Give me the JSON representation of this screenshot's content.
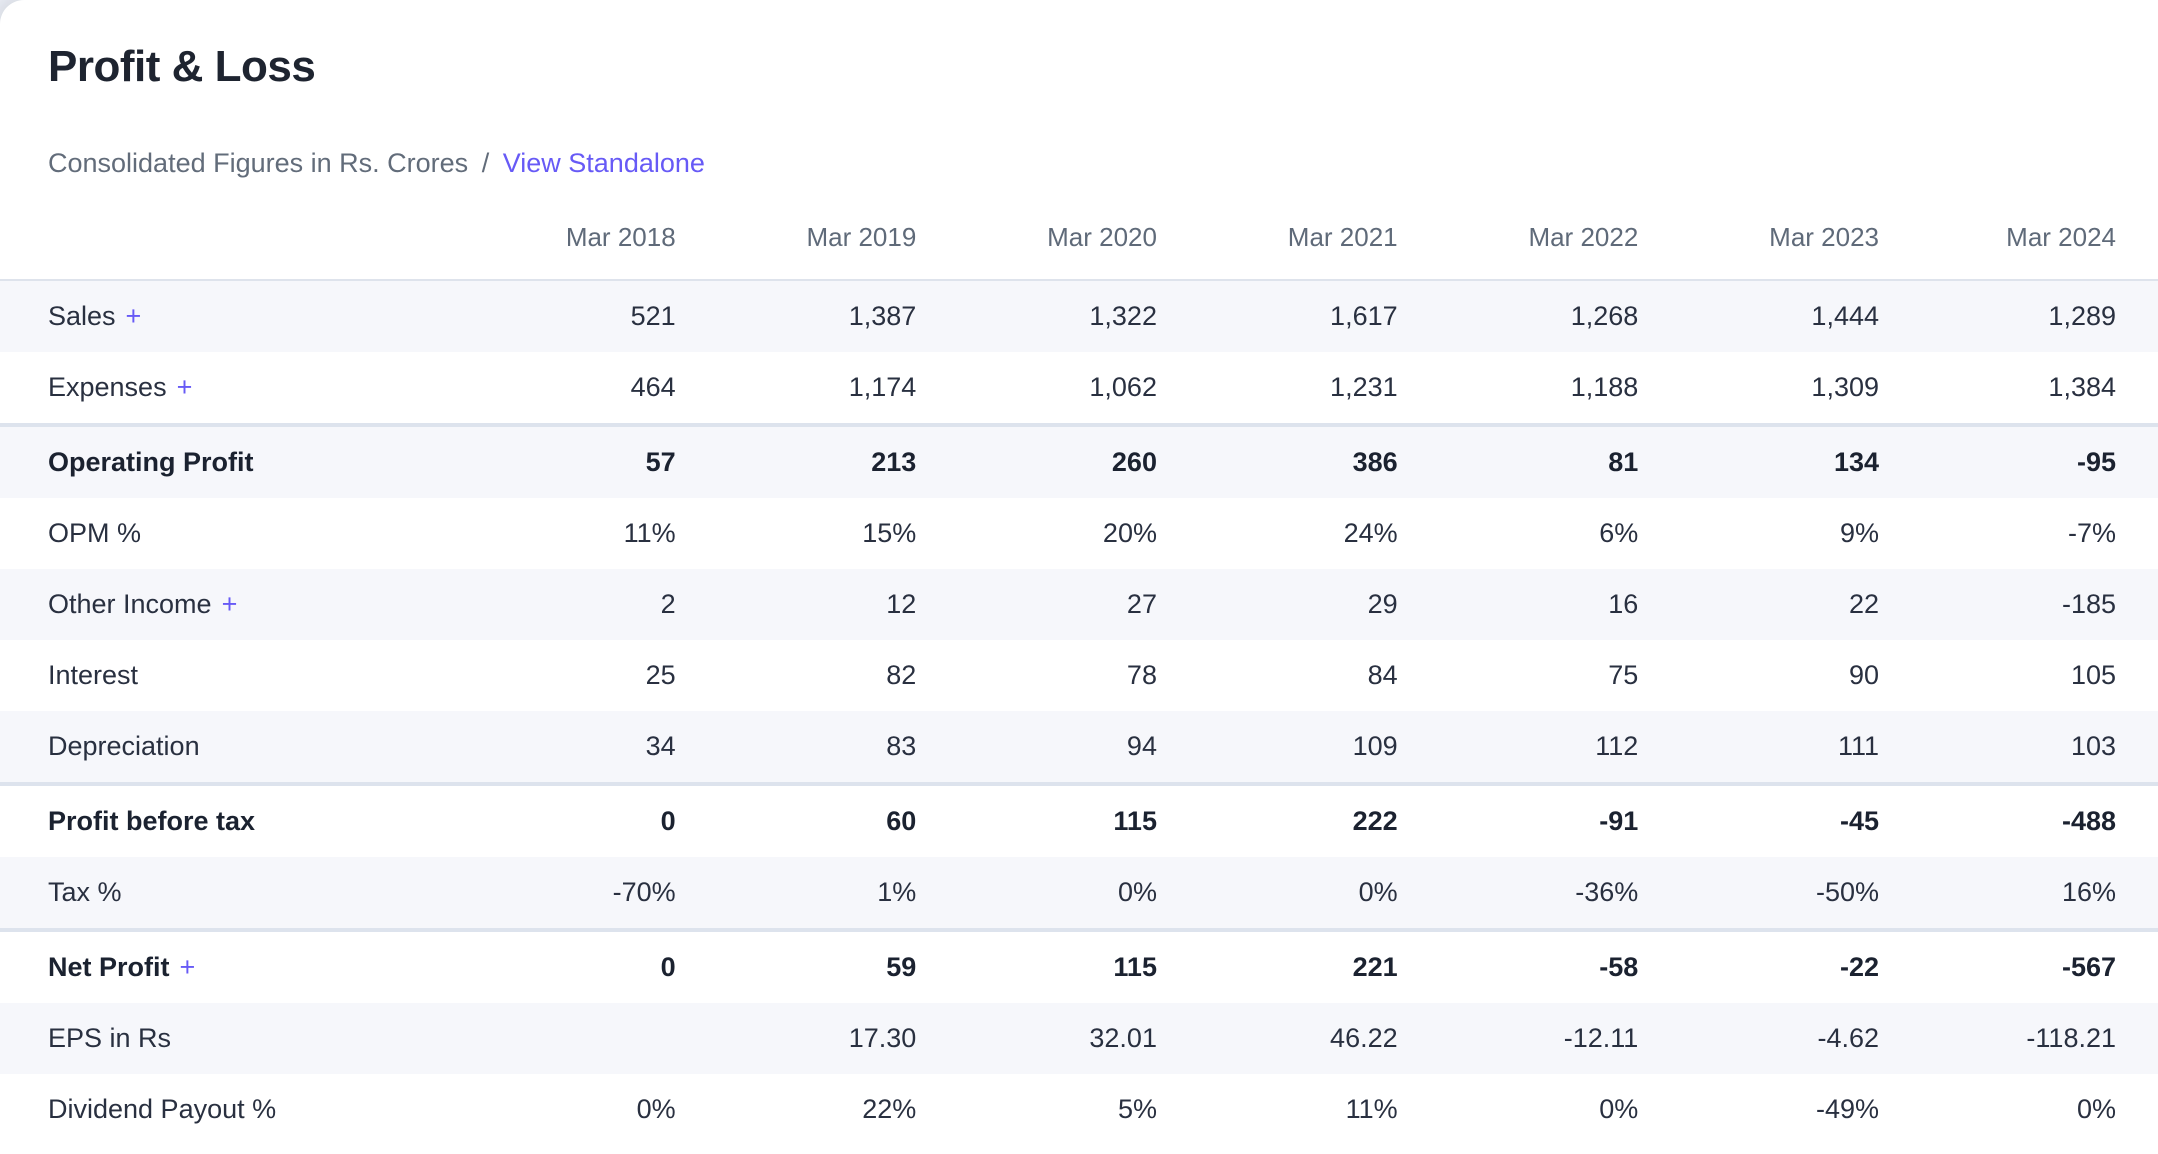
{
  "header": {
    "title": "Profit & Loss",
    "subtitle": "Consolidated Figures in Rs. Crores",
    "separator": "/",
    "standalone_link": "View Standalone"
  },
  "colors": {
    "accent": "#675af6"
  },
  "table": {
    "expand_glyph": "+",
    "columns": [
      "Mar 2018",
      "Mar 2019",
      "Mar 2020",
      "Mar 2021",
      "Mar 2022",
      "Mar 2023",
      "Mar 2024"
    ],
    "rows": [
      {
        "label": "Sales",
        "expandable": true,
        "bold": false,
        "values": [
          "521",
          "1,387",
          "1,322",
          "1,617",
          "1,268",
          "1,444",
          "1,289"
        ]
      },
      {
        "label": "Expenses",
        "expandable": true,
        "bold": false,
        "values": [
          "464",
          "1,174",
          "1,062",
          "1,231",
          "1,188",
          "1,309",
          "1,384"
        ]
      },
      {
        "label": "Operating Profit",
        "expandable": false,
        "bold": true,
        "values": [
          "57",
          "213",
          "260",
          "386",
          "81",
          "134",
          "-95"
        ]
      },
      {
        "label": "OPM %",
        "expandable": false,
        "bold": false,
        "values": [
          "11%",
          "15%",
          "20%",
          "24%",
          "6%",
          "9%",
          "-7%"
        ]
      },
      {
        "label": "Other Income",
        "expandable": true,
        "bold": false,
        "values": [
          "2",
          "12",
          "27",
          "29",
          "16",
          "22",
          "-185"
        ]
      },
      {
        "label": "Interest",
        "expandable": false,
        "bold": false,
        "values": [
          "25",
          "82",
          "78",
          "84",
          "75",
          "90",
          "105"
        ]
      },
      {
        "label": "Depreciation",
        "expandable": false,
        "bold": false,
        "values": [
          "34",
          "83",
          "94",
          "109",
          "112",
          "111",
          "103"
        ]
      },
      {
        "label": "Profit before tax",
        "expandable": false,
        "bold": true,
        "values": [
          "0",
          "60",
          "115",
          "222",
          "-91",
          "-45",
          "-488"
        ]
      },
      {
        "label": "Tax %",
        "expandable": false,
        "bold": false,
        "values": [
          "-70%",
          "1%",
          "0%",
          "0%",
          "-36%",
          "-50%",
          "16%"
        ]
      },
      {
        "label": "Net Profit",
        "expandable": true,
        "bold": true,
        "values": [
          "0",
          "59",
          "115",
          "221",
          "-58",
          "-22",
          "-567"
        ]
      },
      {
        "label": "EPS in Rs",
        "expandable": false,
        "bold": false,
        "values": [
          "",
          "17.30",
          "32.01",
          "46.22",
          "-12.11",
          "-4.62",
          "-118.21"
        ]
      },
      {
        "label": "Dividend Payout %",
        "expandable": false,
        "bold": false,
        "values": [
          "0%",
          "22%",
          "5%",
          "11%",
          "0%",
          "-49%",
          "0%"
        ]
      }
    ]
  }
}
